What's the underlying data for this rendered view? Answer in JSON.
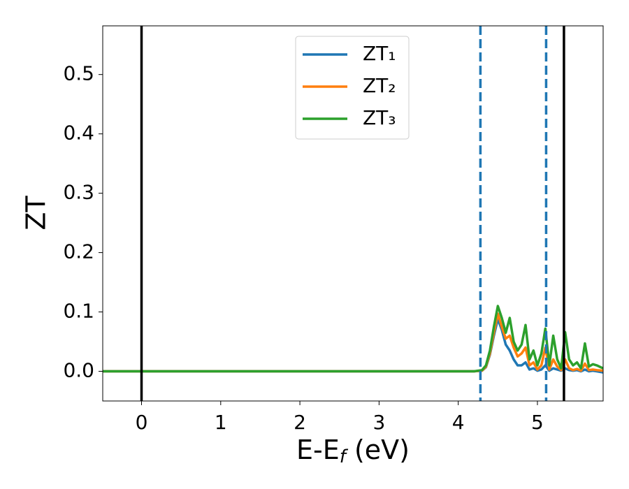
{
  "chart_data": {
    "type": "line",
    "xlabel": [
      "E-E",
      "f",
      " (eV)"
    ],
    "ylabel": "ZT",
    "x": [
      -0.5,
      4.2,
      4.3,
      4.35,
      4.4,
      4.45,
      4.5,
      4.55,
      4.6,
      4.65,
      4.7,
      4.75,
      4.8,
      4.85,
      4.9,
      4.95,
      5.0,
      5.05,
      5.1,
      5.15,
      5.2,
      5.25,
      5.3,
      5.35,
      5.4,
      5.45,
      5.5,
      5.55,
      5.6,
      5.65,
      5.7,
      5.75,
      5.83
    ],
    "series": [
      {
        "name": "ZT₁",
        "color": "#1f77b4",
        "values": [
          0,
          0,
          0.001,
          0.007,
          0.028,
          0.06,
          0.088,
          0.07,
          0.045,
          0.035,
          0.02,
          0.01,
          0.01,
          0.015,
          0.003,
          0.005,
          0.001,
          0.003,
          0.01,
          0.001,
          0.005,
          0.003,
          0.001,
          0.005,
          0.002,
          0.001,
          0.002,
          0,
          0.003,
          0,
          0.001,
          0,
          -0.002
        ]
      },
      {
        "name": "ZT₂",
        "color": "#ff7f0e",
        "values": [
          0,
          0,
          0.001,
          0.008,
          0.03,
          0.065,
          0.097,
          0.075,
          0.055,
          0.06,
          0.04,
          0.025,
          0.03,
          0.04,
          0.01,
          0.015,
          0.003,
          0.01,
          0.04,
          0.003,
          0.02,
          0.008,
          0.002,
          0.02,
          0.005,
          0.002,
          0.004,
          0.001,
          0.013,
          0.002,
          0.003,
          0.002,
          0.001
        ]
      },
      {
        "name": "ZT₃",
        "color": "#2ca02c",
        "values": [
          0,
          0,
          0.002,
          0.01,
          0.035,
          0.075,
          0.11,
          0.09,
          0.065,
          0.09,
          0.05,
          0.035,
          0.045,
          0.078,
          0.02,
          0.035,
          0.01,
          0.03,
          0.072,
          0.01,
          0.06,
          0.02,
          0.005,
          0.066,
          0.02,
          0.01,
          0.015,
          0.005,
          0.047,
          0.008,
          0.012,
          0.01,
          0.005
        ]
      }
    ],
    "vlines": [
      {
        "x": 0,
        "color": "#000000",
        "dashed": false
      },
      {
        "x": 4.28,
        "color": "#1f77b4",
        "dashed": true
      },
      {
        "x": 5.11,
        "color": "#1f77b4",
        "dashed": true
      },
      {
        "x": 5.335,
        "color": "#000000",
        "dashed": false
      }
    ],
    "xlim": [
      -0.49,
      5.83
    ],
    "ylim": [
      -0.05,
      0.582
    ],
    "xticks": [
      0,
      1,
      2,
      3,
      4,
      5
    ],
    "yticks": [
      {
        "value": 0,
        "label": "0.0"
      },
      0.1,
      0.2,
      0.3,
      0.4,
      0.5
    ],
    "legend": "upper center"
  }
}
